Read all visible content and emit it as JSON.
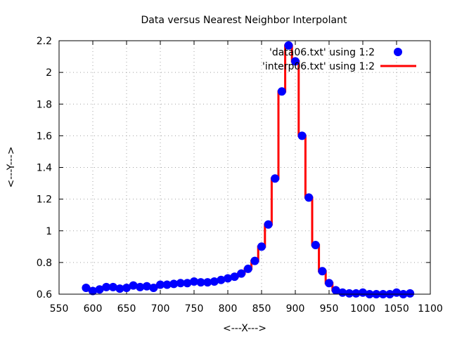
{
  "chart_data": {
    "type": "line",
    "title": "Data versus Nearest Neighbor Interpolant",
    "xlabel": "<---X--->",
    "ylabel": "<---Y--->",
    "xlim": [
      550,
      1100
    ],
    "ylim": [
      0.6,
      2.2
    ],
    "xticks": [
      550,
      600,
      650,
      700,
      750,
      800,
      850,
      900,
      950,
      1000,
      1050,
      1100
    ],
    "yticks": [
      0.6,
      0.8,
      1,
      1.2,
      1.4,
      1.6,
      1.8,
      2,
      2.2
    ],
    "ytick_labels": [
      "0.6",
      "0.8",
      "1",
      "1.2",
      "1.4",
      "1.6",
      "1.8",
      "2",
      "2.2"
    ],
    "grid": true,
    "legend_position": "top-right",
    "colors": {
      "data": "#0000ff",
      "interp": "#ff0000"
    },
    "series": [
      {
        "name": "'data06.txt' using 1:2",
        "style": "points",
        "x": [
          590,
          600,
          610,
          620,
          630,
          640,
          650,
          660,
          670,
          680,
          690,
          700,
          710,
          720,
          730,
          740,
          750,
          760,
          770,
          780,
          790,
          800,
          810,
          820,
          830,
          840,
          850,
          860,
          870,
          880,
          890,
          900,
          910,
          920,
          930,
          940,
          950,
          960,
          970,
          980,
          990,
          1000,
          1010,
          1020,
          1030,
          1040,
          1050,
          1060,
          1070
        ],
        "y": [
          0.64,
          0.62,
          0.63,
          0.645,
          0.645,
          0.635,
          0.64,
          0.655,
          0.645,
          0.65,
          0.64,
          0.66,
          0.66,
          0.665,
          0.67,
          0.67,
          0.68,
          0.675,
          0.675,
          0.68,
          0.69,
          0.7,
          0.71,
          0.73,
          0.76,
          0.81,
          0.9,
          1.04,
          1.33,
          1.88,
          2.17,
          2.07,
          1.6,
          1.21,
          0.91,
          0.745,
          0.67,
          0.625,
          0.61,
          0.605,
          0.605,
          0.61,
          0.6,
          0.6,
          0.6,
          0.6,
          0.61,
          0.6,
          0.605
        ]
      },
      {
        "name": "'interp06.txt' using 1:2",
        "style": "nearest-neighbor step line",
        "x": [
          590,
          600,
          610,
          620,
          630,
          640,
          650,
          660,
          670,
          680,
          690,
          700,
          710,
          720,
          730,
          740,
          750,
          760,
          770,
          780,
          790,
          800,
          810,
          820,
          830,
          840,
          850,
          860,
          870,
          880,
          890,
          900,
          910,
          920,
          930,
          940,
          950,
          960,
          970,
          980,
          990,
          1000,
          1010,
          1020,
          1030,
          1040,
          1050,
          1060,
          1070
        ],
        "y": [
          0.64,
          0.62,
          0.63,
          0.645,
          0.645,
          0.635,
          0.64,
          0.655,
          0.645,
          0.65,
          0.64,
          0.66,
          0.66,
          0.665,
          0.67,
          0.67,
          0.68,
          0.675,
          0.675,
          0.68,
          0.69,
          0.7,
          0.71,
          0.73,
          0.76,
          0.81,
          0.9,
          1.04,
          1.33,
          1.88,
          2.17,
          2.07,
          1.6,
          1.21,
          0.91,
          0.745,
          0.67,
          0.625,
          0.61,
          0.605,
          0.605,
          0.61,
          0.6,
          0.6,
          0.6,
          0.6,
          0.61,
          0.6,
          0.605
        ]
      }
    ]
  }
}
